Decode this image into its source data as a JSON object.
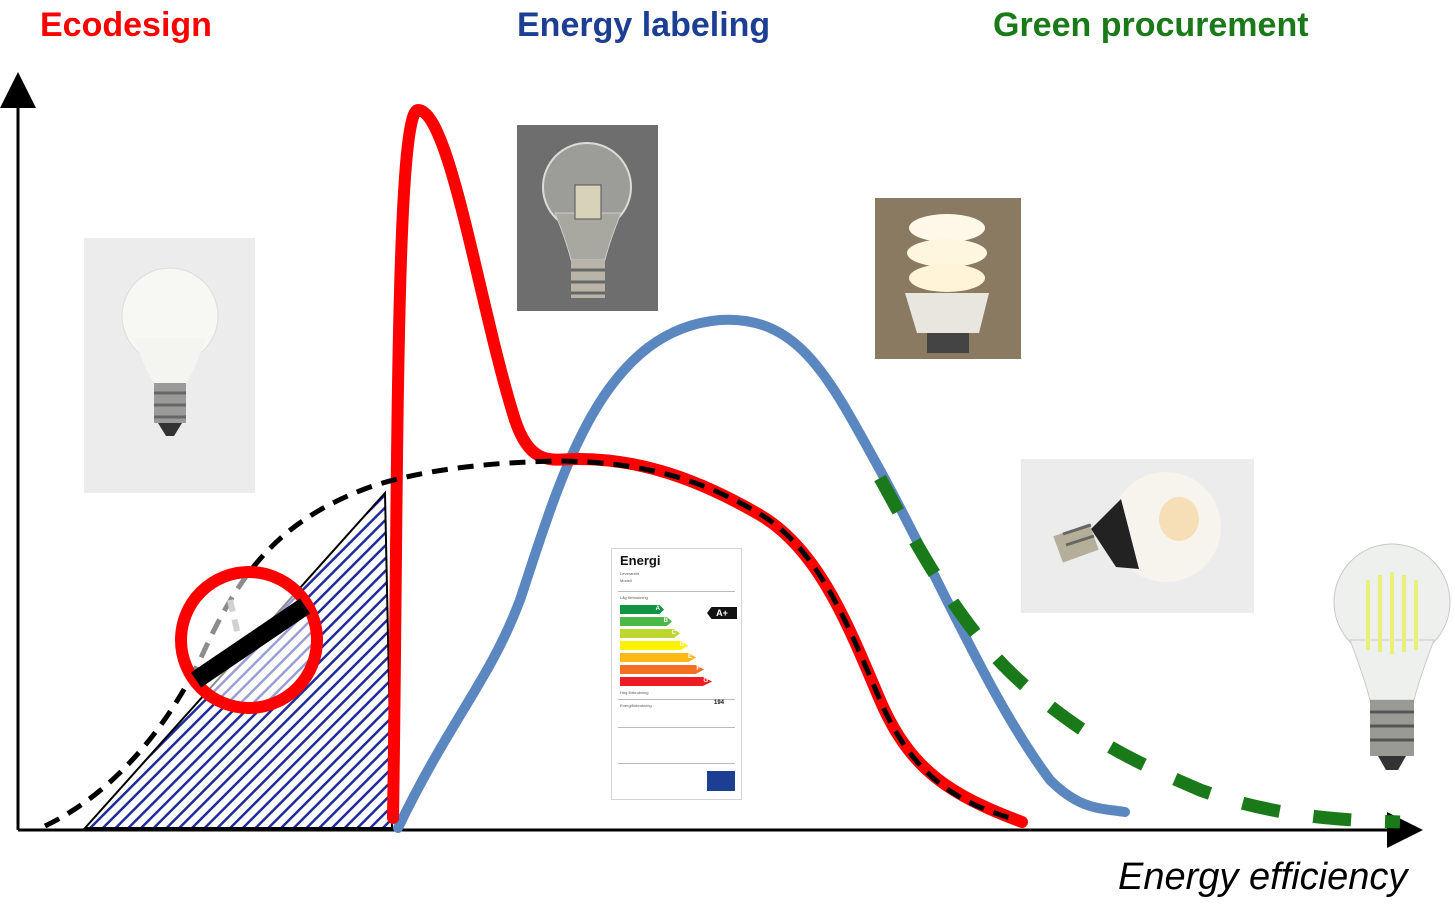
{
  "headings": {
    "ecodesign": "Ecodesign",
    "energy_labeling": "Energy labeling",
    "green_procurement": "Green procurement"
  },
  "axis": {
    "x_label": "Energy efficiency"
  },
  "colors": {
    "ecodesign": "#ff0000",
    "energy_labeling": "#1c3f94",
    "green_procurement": "#1a7a1a",
    "labeling_curve": "#5b87c0",
    "hatch": "#1f2c9c"
  },
  "icons": {
    "ban_symbol": "prohibition-icon",
    "bulbs": [
      "frosted-incandescent-bulb",
      "clear-halogen-bulb",
      "compact-fluorescent-bulb",
      "led-bulb",
      "led-filament-bulb"
    ]
  },
  "energy_label": {
    "brand": "Energi",
    "supplier": "Leverantör",
    "model": "Modell",
    "low_consumption": "Låg förbrukning",
    "high_consumption": "Hög förbrukning",
    "classes": [
      "A",
      "B",
      "C",
      "D",
      "E",
      "F",
      "G"
    ],
    "class_colors": [
      "#139444",
      "#4cb848",
      "#bed630",
      "#fff200",
      "#fcb814",
      "#f36f21",
      "#ed1c24"
    ],
    "rating": "A+",
    "consumption_label": "Energiförbrukning",
    "consumption_value": "194"
  }
}
